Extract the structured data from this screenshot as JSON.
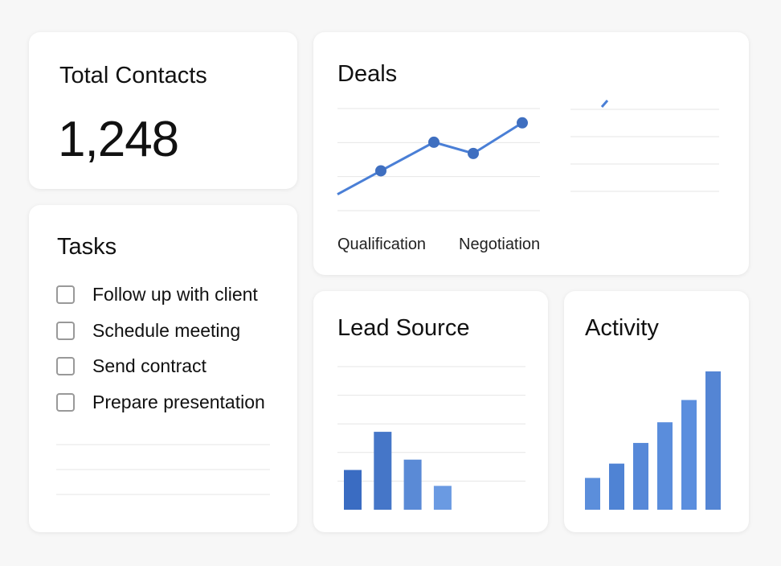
{
  "contacts": {
    "title": "Total Contacts",
    "value": "1,248"
  },
  "tasks": {
    "title": "Tasks",
    "items": [
      "Follow up with client",
      "Schedule meeting",
      "Send contract",
      "Prepare presentation"
    ]
  },
  "charts": [
    {
      "type": "line",
      "title": "Deals",
      "labels": [
        "Qualification",
        "Negotiation"
      ],
      "values": [
        16,
        39,
        67,
        56,
        86
      ],
      "color": "#4a7fd6",
      "ylim": [
        0,
        100
      ],
      "grid": true
    },
    {
      "type": "bar",
      "title": "Lead Source",
      "values": [
        50,
        98,
        63,
        30
      ],
      "colors": [
        "#3a6cc2",
        "#4576c8",
        "#5a8ad6",
        "#6a9ae2"
      ],
      "ylim": [
        0,
        180
      ],
      "grid": true
    },
    {
      "type": "bar",
      "title": "Activity",
      "values": [
        40,
        58,
        84,
        110,
        138,
        174
      ],
      "colors": [
        "#5b8edb",
        "#4f83d4",
        "#5688d8",
        "#5a8ddc",
        "#5b8ede",
        "#5485d4"
      ],
      "ylim": [
        0,
        180
      ],
      "grid": false
    }
  ]
}
